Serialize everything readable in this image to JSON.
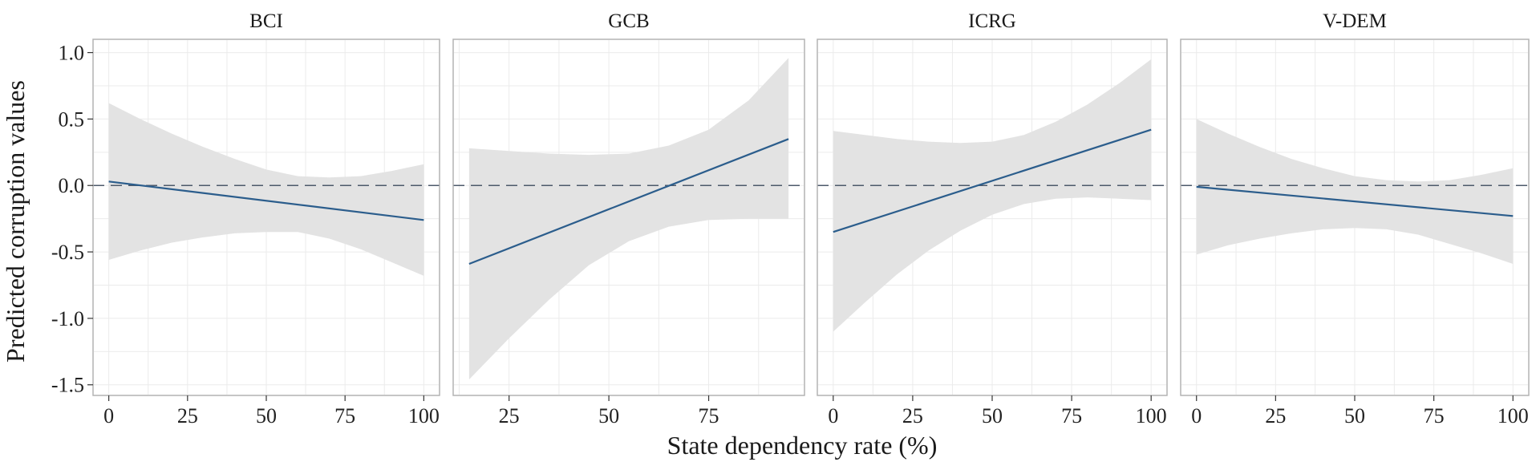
{
  "chart_data": {
    "type": "line",
    "ylabel": "Predicted corruption values",
    "xlabel": "State dependency rate (%)",
    "ylim": [
      -1.58,
      1.1
    ],
    "yticks": [
      -1.5,
      -1.0,
      -0.5,
      0.0,
      0.5,
      1.0
    ],
    "ytick_labels": [
      "-1.5",
      "-1.0",
      "-0.5",
      "0.0",
      "0.5",
      "1.0"
    ],
    "reference_line": 0,
    "grid": true,
    "panels": [
      {
        "label": "BCI",
        "xlim": [
          -5,
          105
        ],
        "xticks": [
          0,
          25,
          50,
          75,
          100
        ],
        "xtick_labels": [
          "0",
          "25",
          "50",
          "75",
          "100"
        ],
        "fit": {
          "x": [
            0,
            100
          ],
          "y": [
            0.03,
            -0.26
          ]
        },
        "band": {
          "x": [
            0,
            10,
            20,
            30,
            40,
            50,
            60,
            70,
            80,
            90,
            100
          ],
          "upper": [
            0.62,
            0.5,
            0.39,
            0.29,
            0.2,
            0.12,
            0.07,
            0.06,
            0.07,
            0.11,
            0.16
          ],
          "lower": [
            -0.56,
            -0.49,
            -0.43,
            -0.39,
            -0.36,
            -0.35,
            -0.35,
            -0.4,
            -0.48,
            -0.58,
            -0.68
          ]
        }
      },
      {
        "label": "GCB",
        "xlim": [
          11,
          99
        ],
        "xticks": [
          25,
          50,
          75
        ],
        "xtick_labels": [
          "25",
          "50",
          "75"
        ],
        "fit": {
          "x": [
            15,
            95
          ],
          "y": [
            -0.59,
            0.35
          ]
        },
        "band": {
          "x": [
            15,
            25,
            35,
            45,
            55,
            65,
            75,
            85,
            95
          ],
          "upper": [
            0.28,
            0.26,
            0.24,
            0.23,
            0.24,
            0.3,
            0.42,
            0.64,
            0.96
          ],
          "lower": [
            -1.46,
            -1.15,
            -0.86,
            -0.6,
            -0.42,
            -0.31,
            -0.26,
            -0.25,
            -0.25
          ]
        }
      },
      {
        "label": "ICRG",
        "xlim": [
          -5,
          105
        ],
        "xticks": [
          0,
          25,
          50,
          75,
          100
        ],
        "xtick_labels": [
          "0",
          "25",
          "50",
          "75",
          "100"
        ],
        "fit": {
          "x": [
            0,
            100
          ],
          "y": [
            -0.35,
            0.42
          ]
        },
        "band": {
          "x": [
            0,
            10,
            20,
            30,
            40,
            50,
            60,
            70,
            80,
            90,
            100
          ],
          "upper": [
            0.41,
            0.38,
            0.35,
            0.33,
            0.32,
            0.33,
            0.38,
            0.48,
            0.61,
            0.77,
            0.95
          ],
          "lower": [
            -1.1,
            -0.88,
            -0.67,
            -0.49,
            -0.34,
            -0.22,
            -0.14,
            -0.1,
            -0.09,
            -0.1,
            -0.11
          ]
        }
      },
      {
        "label": "V-DEM",
        "xlim": [
          -5,
          105
        ],
        "xticks": [
          0,
          25,
          50,
          75,
          100
        ],
        "xtick_labels": [
          "0",
          "25",
          "50",
          "75",
          "100"
        ],
        "fit": {
          "x": [
            0,
            100
          ],
          "y": [
            -0.01,
            -0.23
          ]
        },
        "band": {
          "x": [
            0,
            10,
            20,
            30,
            40,
            50,
            60,
            70,
            80,
            90,
            100
          ],
          "upper": [
            0.5,
            0.39,
            0.29,
            0.2,
            0.13,
            0.07,
            0.04,
            0.03,
            0.04,
            0.08,
            0.13
          ],
          "lower": [
            -0.52,
            -0.45,
            -0.4,
            -0.36,
            -0.33,
            -0.32,
            -0.33,
            -0.37,
            -0.44,
            -0.51,
            -0.59
          ]
        }
      }
    ]
  }
}
